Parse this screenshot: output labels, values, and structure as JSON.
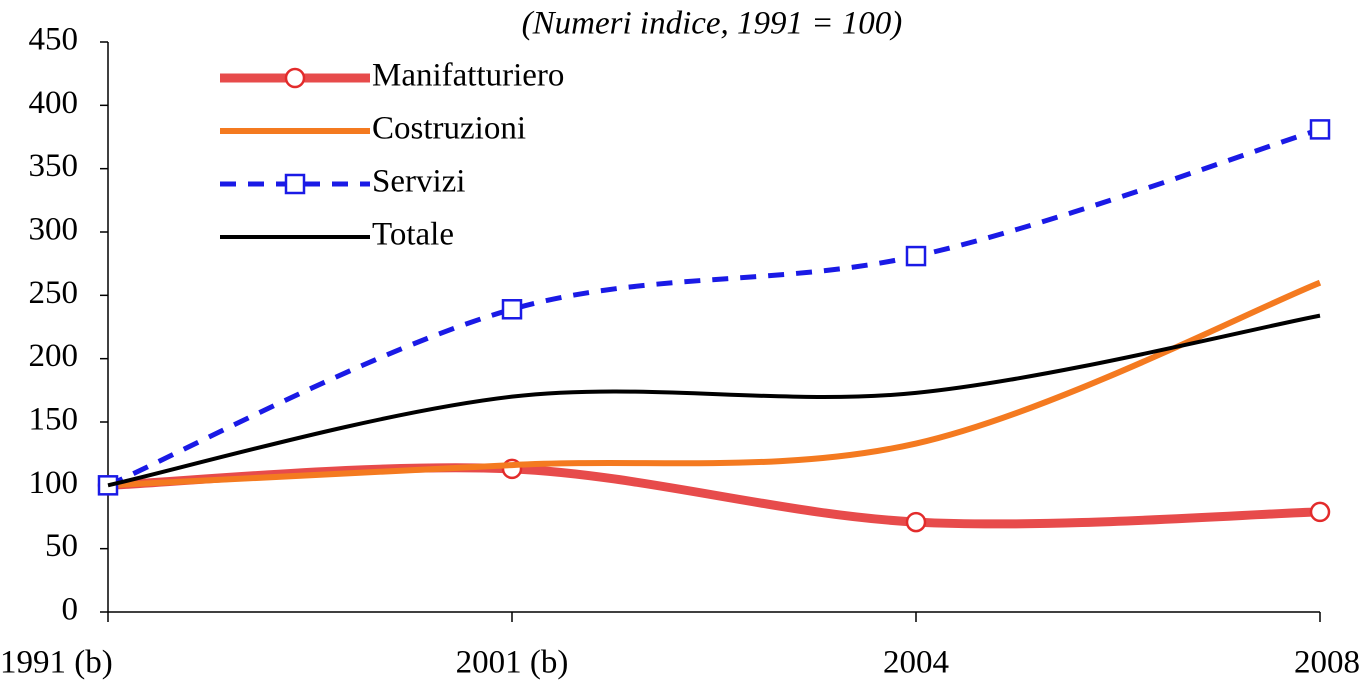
{
  "chart_data": {
    "type": "line",
    "subtitle": "(Numeri indice, 1991 = 100)",
    "categories": [
      "1991 (b)",
      "2001 (b)",
      "2004",
      "2008"
    ],
    "series": [
      {
        "name": "Manifatturiero",
        "color": "#e32b2b",
        "marker": "circle",
        "values": [
          100,
          113,
          71,
          79
        ]
      },
      {
        "name": "Costruzioni",
        "color": "#f47a20",
        "values": [
          100,
          116,
          133,
          260
        ]
      },
      {
        "name": "Servizi",
        "color": "#1a1ae6",
        "marker": "square",
        "dashed": true,
        "values": [
          100,
          239,
          281,
          381
        ]
      },
      {
        "name": "Totale",
        "color": "#000000",
        "values": [
          100,
          170,
          173,
          234
        ]
      }
    ],
    "ylim": [
      0,
      450
    ],
    "yticks": [
      0,
      50,
      100,
      150,
      200,
      250,
      300,
      350,
      400,
      450
    ],
    "smooth": true,
    "legend": "upper-left"
  }
}
